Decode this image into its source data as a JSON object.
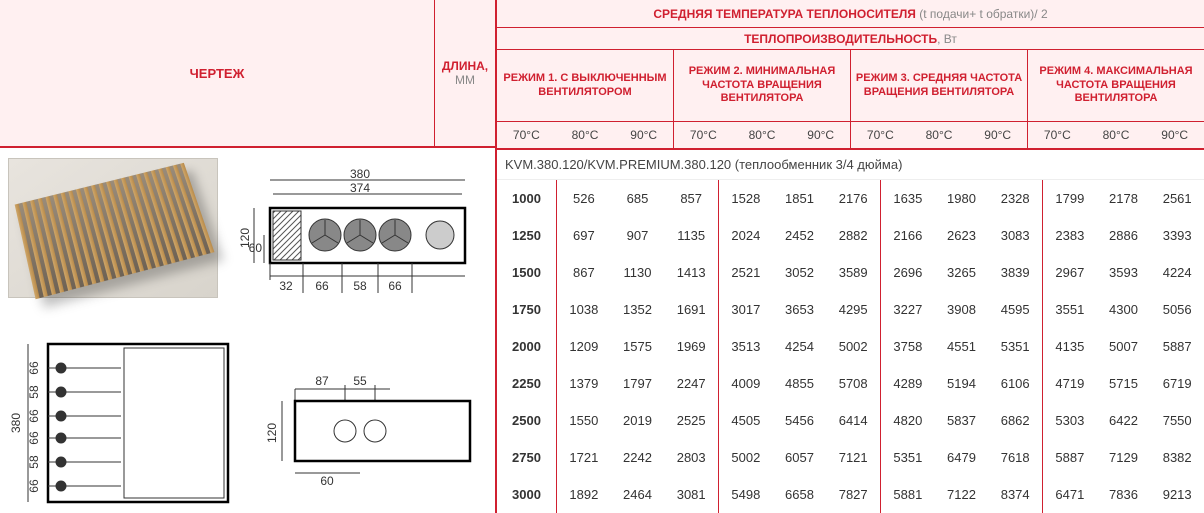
{
  "header": {
    "drawing_label": "ЧЕРТЕЖ",
    "length_label": "ДЛИНА,",
    "length_unit": "ММ",
    "avg_temp_label": "СРЕДНЯЯ ТЕМПЕРАТУРА ТЕПЛОНОСИТЕЛЯ",
    "avg_temp_formula": "(t подачи+ t обратки)/ 2",
    "heat_output_label": "ТЕПЛОПРОИЗВОДИТЕЛЬНОСТЬ",
    "heat_output_unit": ", Вт",
    "modes": [
      "РЕЖИМ 1. С ВЫКЛЮЧЕННЫМ ВЕНТИЛЯТОРОМ",
      "РЕЖИМ 2. МИНИМАЛЬНАЯ ЧАСТОТА ВРАЩЕНИЯ ВЕНТИЛЯТОРА",
      "РЕЖИМ 3. СРЕДНЯЯ ЧАСТОТА ВРАЩЕНИЯ ВЕНТИЛЯТОРА",
      "РЕЖИМ 4. МАКСИМАЛЬНАЯ ЧАСТОТА ВРАЩЕНИЯ ВЕНТИЛЯТОРА"
    ],
    "temps": [
      "70°C",
      "80°C",
      "90°C"
    ]
  },
  "model_title": "KVM.380.120/KVM.PREMIUM.380.120 (теплообменник 3/4 дюйма)",
  "lengths": [
    "1000",
    "1250",
    "1500",
    "1750",
    "2000",
    "2250",
    "2500",
    "2750",
    "3000"
  ],
  "data": {
    "mode1": [
      [
        "526",
        "685",
        "857"
      ],
      [
        "697",
        "907",
        "1135"
      ],
      [
        "867",
        "1130",
        "1413"
      ],
      [
        "1038",
        "1352",
        "1691"
      ],
      [
        "1209",
        "1575",
        "1969"
      ],
      [
        "1379",
        "1797",
        "2247"
      ],
      [
        "1550",
        "2019",
        "2525"
      ],
      [
        "1721",
        "2242",
        "2803"
      ],
      [
        "1892",
        "2464",
        "3081"
      ]
    ],
    "mode2": [
      [
        "1528",
        "1851",
        "2176"
      ],
      [
        "2024",
        "2452",
        "2882"
      ],
      [
        "2521",
        "3052",
        "3589"
      ],
      [
        "3017",
        "3653",
        "4295"
      ],
      [
        "3513",
        "4254",
        "5002"
      ],
      [
        "4009",
        "4855",
        "5708"
      ],
      [
        "4505",
        "5456",
        "6414"
      ],
      [
        "5002",
        "6057",
        "7121"
      ],
      [
        "5498",
        "6658",
        "7827"
      ]
    ],
    "mode3": [
      [
        "1635",
        "1980",
        "2328"
      ],
      [
        "2166",
        "2623",
        "3083"
      ],
      [
        "2696",
        "3265",
        "3839"
      ],
      [
        "3227",
        "3908",
        "4595"
      ],
      [
        "3758",
        "4551",
        "5351"
      ],
      [
        "4289",
        "5194",
        "6106"
      ],
      [
        "4820",
        "5837",
        "6862"
      ],
      [
        "5351",
        "6479",
        "7618"
      ],
      [
        "5881",
        "7122",
        "8374"
      ]
    ],
    "mode4": [
      [
        "1799",
        "2178",
        "2561"
      ],
      [
        "2383",
        "2886",
        "3393"
      ],
      [
        "2967",
        "3593",
        "4224"
      ],
      [
        "3551",
        "4300",
        "5056"
      ],
      [
        "4135",
        "5007",
        "5887"
      ],
      [
        "4719",
        "5715",
        "6719"
      ],
      [
        "5303",
        "6422",
        "7550"
      ],
      [
        "5887",
        "7129",
        "8382"
      ],
      [
        "6471",
        "7836",
        "9213"
      ]
    ]
  },
  "dims": {
    "w380": "380",
    "w374": "374",
    "h120": "120",
    "h60": "60",
    "off32": "32",
    "s66a": "66",
    "s58": "58",
    "s66b": "66",
    "side380": "380",
    "side66a": "66",
    "side58a": "58",
    "side66b": "66",
    "side66c": "66",
    "side58b": "58",
    "side66d": "66",
    "v87": "87",
    "v55": "55",
    "v120": "120",
    "v60": "60"
  },
  "colors": {
    "accent": "#d02030",
    "header_bg": "#fff0f1",
    "text": "#444"
  }
}
